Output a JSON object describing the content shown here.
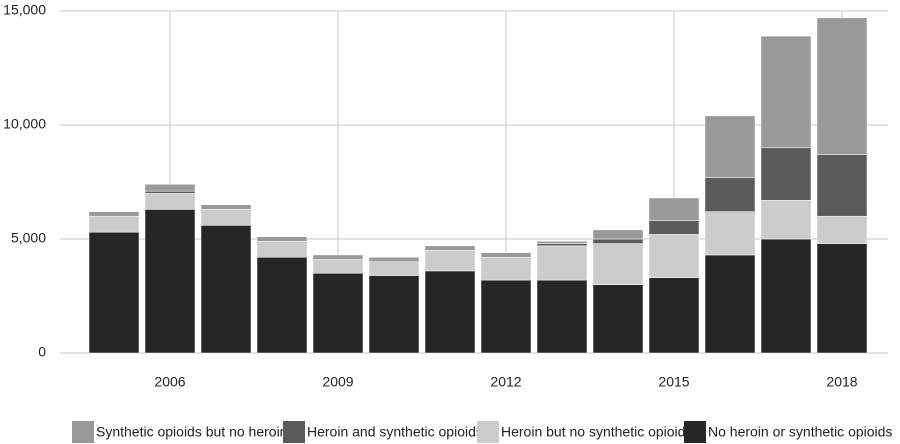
{
  "chart_data": {
    "type": "stacked_bar",
    "categories": [
      null,
      "2006",
      null,
      null,
      "2009",
      null,
      null,
      "2012",
      null,
      null,
      "2015",
      null,
      null,
      "2018"
    ],
    "series": [
      {
        "name": "Synthetic opioids but no heroin",
        "color": "#999999",
        "values": [
          200,
          300,
          200,
          200,
          200,
          200,
          200,
          200,
          100,
          400,
          1000,
          2700,
          4900,
          6000
        ]
      },
      {
        "name": "Heroin and synthetic opioids",
        "color": "#5a5a5a",
        "values": [
          0,
          100,
          0,
          0,
          0,
          0,
          0,
          0,
          100,
          200,
          600,
          1500,
          2300,
          2700
        ]
      },
      {
        "name": "Heroin but no synthetic opioids",
        "color": "#cccccc",
        "values": [
          700,
          700,
          700,
          700,
          600,
          600,
          900,
          1000,
          1500,
          1800,
          1900,
          1900,
          1700,
          1200
        ]
      },
      {
        "name": "No heroin or synthetic opioids",
        "color": "#262626",
        "values": [
          5300,
          6300,
          5600,
          4200,
          3500,
          3400,
          3600,
          3200,
          3200,
          3000,
          3300,
          4300,
          5000,
          4800
        ]
      }
    ],
    "ylim": [
      0,
      15000
    ],
    "yticks": [
      0,
      {
        "value": 5000,
        "label": "5,000"
      },
      {
        "value": 10000,
        "label": "10,000"
      },
      {
        "value": 15000,
        "label": "15,000"
      }
    ],
    "grid": true
  }
}
